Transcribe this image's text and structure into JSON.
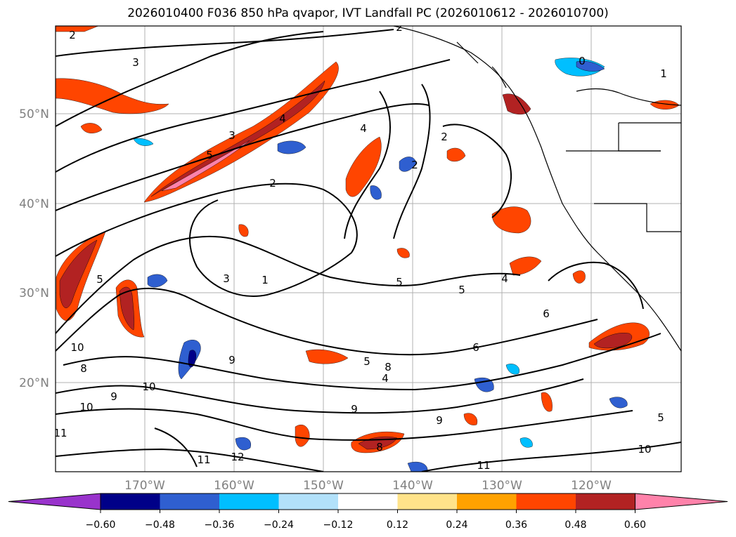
{
  "title": "2026010400 F036 850 hPa qvapor, IVT Landfall PC (2026010612 - 2026010700)",
  "map": {
    "lat_labels": [
      "50°N",
      "40°N",
      "30°N",
      "20°N"
    ],
    "lon_labels": [
      "170°W",
      "160°W",
      "150°W",
      "140°W",
      "130°W",
      "120°W"
    ],
    "contour_labels": [
      "2",
      "3",
      "2",
      "0",
      "1",
      "3",
      "4",
      "5",
      "4",
      "2",
      "2",
      "1",
      "3",
      "5",
      "5",
      "5",
      "4",
      "6",
      "6",
      "5",
      "4",
      "10",
      "9",
      "8",
      "10",
      "9",
      "9",
      "10",
      "9",
      "8",
      "11",
      "11",
      "12",
      "11",
      "10",
      "8",
      "5",
      "2"
    ]
  },
  "colorbar": {
    "colors": [
      "#9933cc",
      "#000088",
      "#2f5fd0",
      "#00bfff",
      "#b2e1fa",
      "#ffffff",
      "#ffe38a",
      "#ffa200",
      "#ff4500",
      "#b22222",
      "#ff82aa"
    ],
    "ticks": [
      "−0.60",
      "−0.48",
      "−0.36",
      "−0.24",
      "−0.12",
      "0.12",
      "0.24",
      "0.36",
      "0.48",
      "0.60"
    ]
  }
}
